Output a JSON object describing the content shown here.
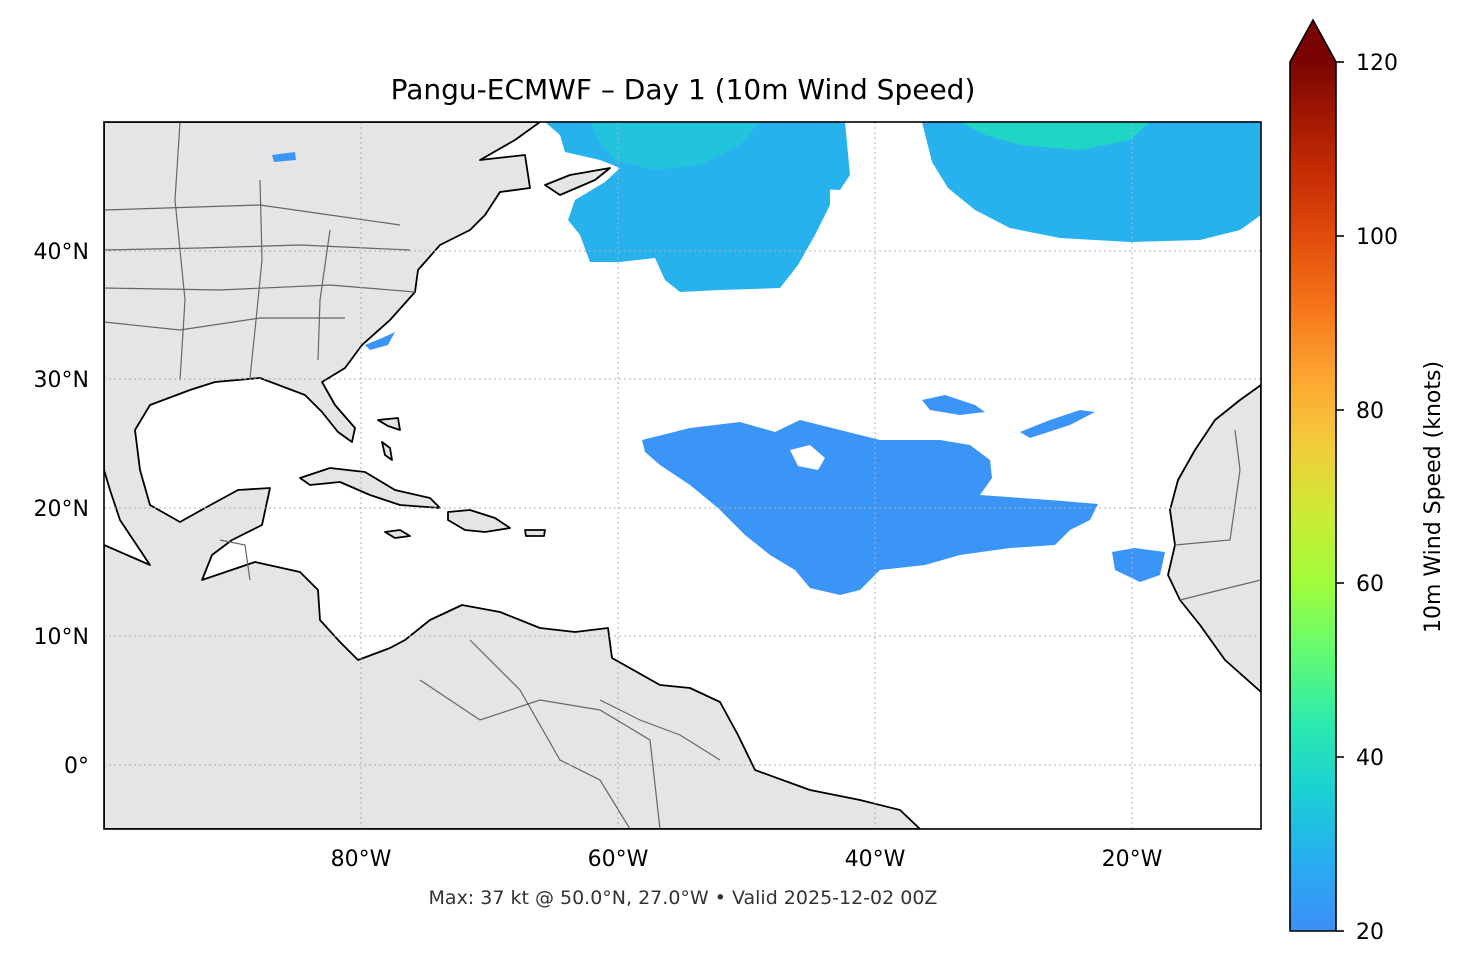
{
  "title": "Pangu-ECMWF – Day 1 (10m Wind Speed)",
  "caption": "Max: 37 kt @ 50.0°N, 27.0°W • Valid 2025-12-02 00Z",
  "map": {
    "lon_range": [
      -100,
      -10
    ],
    "lat_range": [
      -5,
      50
    ],
    "lon_ticks": [
      {
        "value": -80,
        "label": "80°W"
      },
      {
        "value": -60,
        "label": "60°W"
      },
      {
        "value": -40,
        "label": "40°W"
      },
      {
        "value": -20,
        "label": "20°W"
      }
    ],
    "lat_ticks": [
      {
        "value": 40,
        "label": "40°N"
      },
      {
        "value": 30,
        "label": "30°N"
      },
      {
        "value": 20,
        "label": "20°N"
      },
      {
        "value": 10,
        "label": "10°N"
      },
      {
        "value": 0,
        "label": "0°"
      }
    ],
    "gridlines": "dotted",
    "land_color": "#e5e5e5",
    "ocean_color": "#ffffff"
  },
  "colorbar": {
    "label": "10m Wind Speed (knots)",
    "min": 20,
    "max": 120,
    "extend": "max",
    "ticks": [
      {
        "value": 20,
        "label": "20"
      },
      {
        "value": 40,
        "label": "40"
      },
      {
        "value": 60,
        "label": "60"
      },
      {
        "value": 80,
        "label": "80"
      },
      {
        "value": 100,
        "label": "100"
      },
      {
        "value": 120,
        "label": "120"
      }
    ],
    "colormap": "turbo"
  }
}
